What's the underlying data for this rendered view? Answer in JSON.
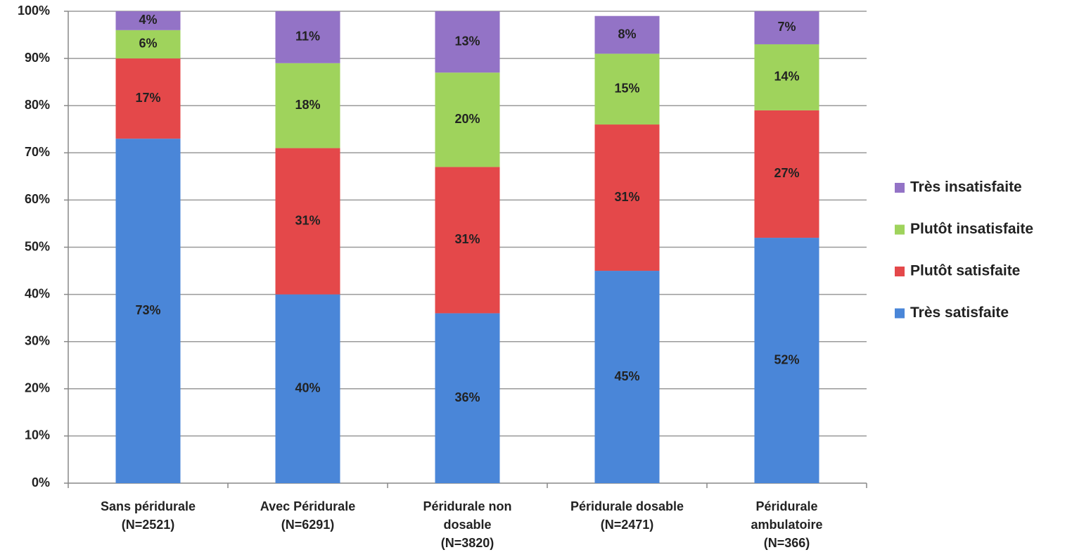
{
  "chart_data": {
    "type": "stacked_bar",
    "categories": [
      [
        "Sans péridurale",
        "(N=2521)"
      ],
      [
        "Avec Péridurale",
        "(N=6291)"
      ],
      [
        "Péridurale non",
        "dosable",
        "(N=3820)"
      ],
      [
        "Péridurale dosable",
        "(N=2471)"
      ],
      [
        "Péridurale",
        "ambulatoire",
        "(N=366)"
      ]
    ],
    "series": [
      {
        "name": "Très satisfaite",
        "color": "#4a86d8",
        "values": [
          73,
          40,
          36,
          45,
          52
        ],
        "value_labels": [
          "73%",
          "40%",
          "36%",
          "45%",
          "52%"
        ]
      },
      {
        "name": "Plutôt satisfaite",
        "color": "#e4484a",
        "values": [
          17,
          31,
          31,
          31,
          27
        ],
        "value_labels": [
          "17%",
          "31%",
          "31%",
          "31%",
          "27%"
        ]
      },
      {
        "name": "Plutôt insatisfaite",
        "color": "#9fd35c",
        "values": [
          6,
          18,
          20,
          15,
          14
        ],
        "value_labels": [
          "6%",
          "18%",
          "20%",
          "15%",
          "14%"
        ]
      },
      {
        "name": "Très insatisfaite",
        "color": "#9373c6",
        "values": [
          4,
          11,
          13,
          8,
          7
        ],
        "value_labels": [
          "4%",
          "11%",
          "13%",
          "8%",
          "7%"
        ]
      }
    ],
    "ylim": [
      0,
      100
    ],
    "yticks": [
      {
        "value": 0,
        "label": "0%"
      },
      {
        "value": 10,
        "label": "10%"
      },
      {
        "value": 20,
        "label": "20%"
      },
      {
        "value": 30,
        "label": "30%"
      },
      {
        "value": 40,
        "label": "40%"
      },
      {
        "value": 50,
        "label": "50%"
      },
      {
        "value": 60,
        "label": "60%"
      },
      {
        "value": 70,
        "label": "70%"
      },
      {
        "value": 80,
        "label": "80%"
      },
      {
        "value": 90,
        "label": "90%"
      },
      {
        "value": 100,
        "label": "100%"
      }
    ],
    "grid": true,
    "legend": "right"
  }
}
